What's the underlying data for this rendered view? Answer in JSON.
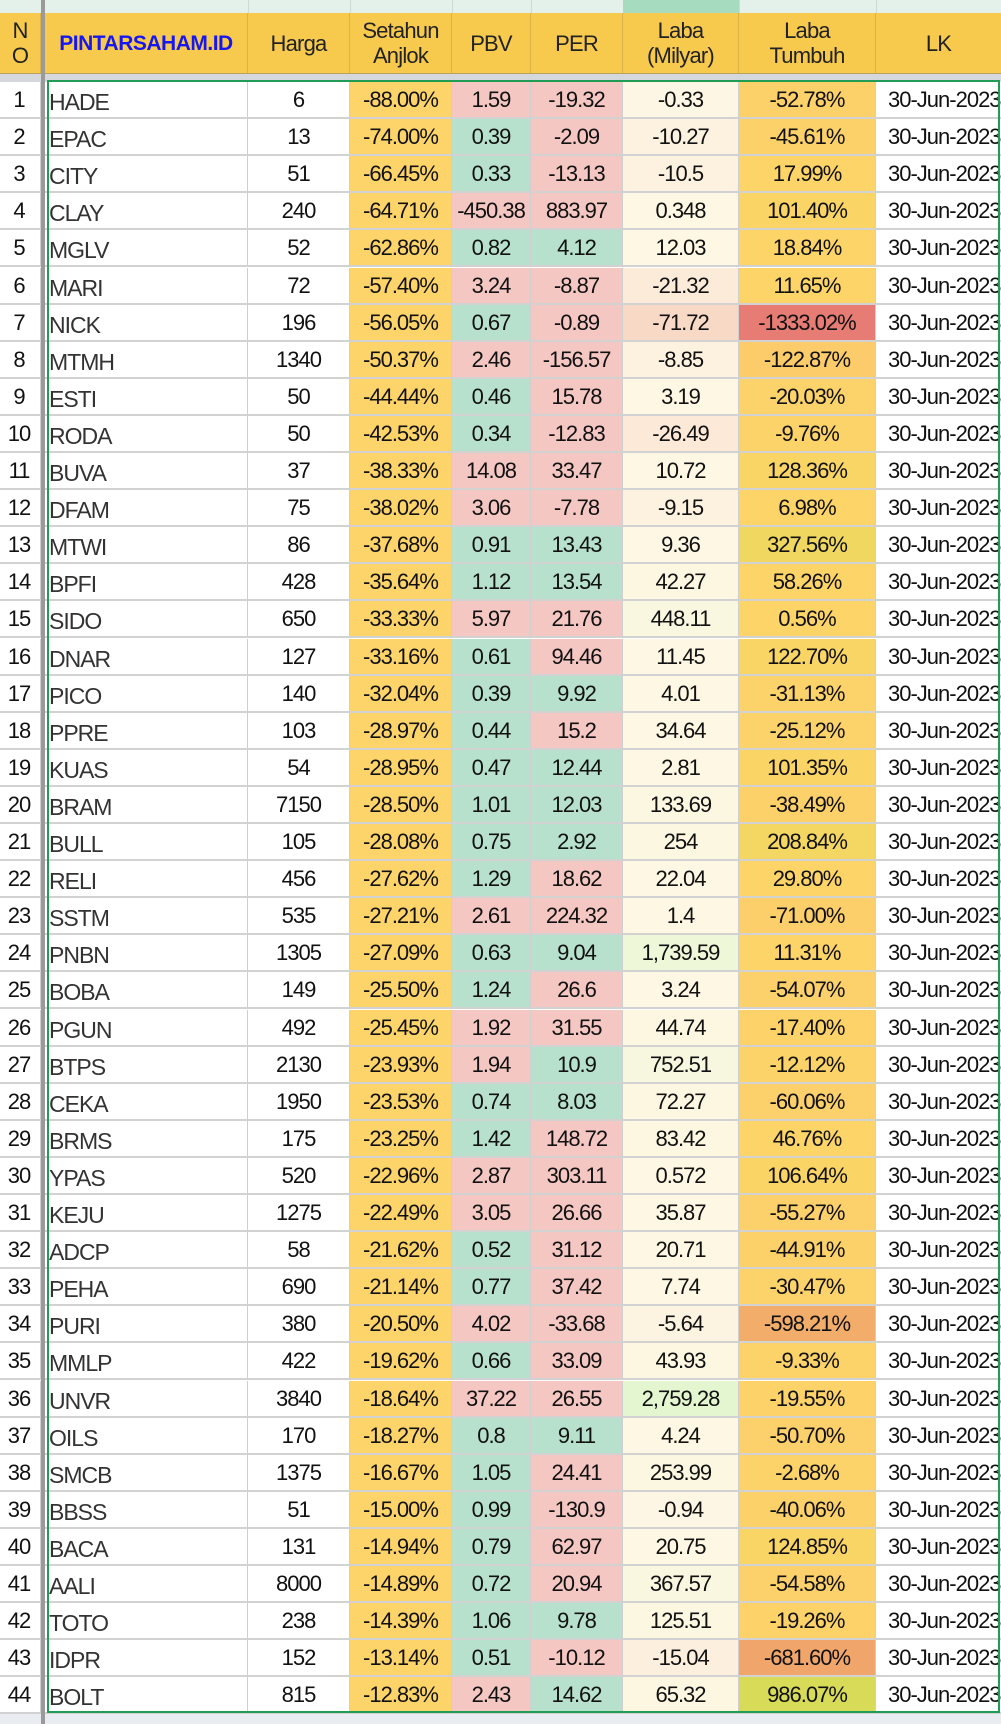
{
  "header": {
    "no": "N\nO",
    "brand": "PINTARSAHAM.ID",
    "harga": "Harga",
    "setahun": "Setahun\nAnjlok",
    "pbv": "PBV",
    "per": "PER",
    "laba": "Laba\n(Milyar)",
    "tumbuh": "Laba\nTumbuh",
    "lk": "LK"
  },
  "colors": {
    "header": "#f7ca4d",
    "brand": "#1717f0",
    "setahun": "#fdd46a",
    "red": "#f4c7c3",
    "green": "#b7e1cd",
    "selection": "#1f9d55"
  },
  "rows": [
    {
      "no": "1",
      "code": "HADE",
      "harga": "6",
      "setahun": "-88.00%",
      "pbv": "1.59",
      "pbv_c": "r",
      "per": "-19.32",
      "per_c": "r",
      "laba": "-0.33",
      "laba_bg": "#fef6e4",
      "tumbuh": "-52.78%",
      "tumbuh_bg": "#fcd16a",
      "lk": "30-Jun-2023"
    },
    {
      "no": "2",
      "code": "EPAC",
      "harga": "13",
      "setahun": "-74.00%",
      "pbv": "0.39",
      "pbv_c": "g",
      "per": "-2.09",
      "per_c": "r",
      "laba": "-10.27",
      "laba_bg": "#fdf1df",
      "tumbuh": "-45.61%",
      "tumbuh_bg": "#fcd16a",
      "lk": "30-Jun-2023"
    },
    {
      "no": "3",
      "code": "CITY",
      "harga": "51",
      "setahun": "-66.45%",
      "pbv": "0.33",
      "pbv_c": "g",
      "per": "-13.13",
      "per_c": "r",
      "laba": "-10.5",
      "laba_bg": "#fdf1df",
      "tumbuh": "17.99%",
      "tumbuh_bg": "#fdd468",
      "lk": "30-Jun-2023"
    },
    {
      "no": "4",
      "code": "CLAY",
      "harga": "240",
      "setahun": "-64.71%",
      "pbv": "-450.38",
      "pbv_c": "r",
      "per": "883.97",
      "per_c": "r",
      "laba": "0.348",
      "laba_bg": "#fef7e3",
      "tumbuh": "101.40%",
      "tumbuh_bg": "#fad566",
      "lk": "30-Jun-2023"
    },
    {
      "no": "5",
      "code": "MGLV",
      "harga": "52",
      "setahun": "-62.86%",
      "pbv": "0.82",
      "pbv_c": "g",
      "per": "4.12",
      "per_c": "g",
      "laba": "12.03",
      "laba_bg": "#fef7e3",
      "tumbuh": "18.84%",
      "tumbuh_bg": "#fdd468",
      "lk": "30-Jun-2023"
    },
    {
      "no": "6",
      "code": "MARI",
      "harga": "72",
      "setahun": "-57.40%",
      "pbv": "3.24",
      "pbv_c": "r",
      "per": "-8.87",
      "per_c": "r",
      "laba": "-21.32",
      "laba_bg": "#fcebd9",
      "tumbuh": "11.65%",
      "tumbuh_bg": "#fdd468",
      "lk": "30-Jun-2023"
    },
    {
      "no": "7",
      "code": "NICK",
      "harga": "196",
      "setahun": "-56.05%",
      "pbv": "0.67",
      "pbv_c": "g",
      "per": "-0.89",
      "per_c": "r",
      "laba": "-71.72",
      "laba_bg": "#f8d9c6",
      "tumbuh": "-1333.02%",
      "tumbuh_bg": "#e67c73",
      "lk": "30-Jun-2023"
    },
    {
      "no": "8",
      "code": "MTMH",
      "harga": "1340",
      "setahun": "-50.37%",
      "pbv": "2.46",
      "pbv_c": "r",
      "per": "-156.57",
      "per_c": "r",
      "laba": "-8.85",
      "laba_bg": "#fdf2e0",
      "tumbuh": "-122.87%",
      "tumbuh_bg": "#fccb6a",
      "lk": "30-Jun-2023"
    },
    {
      "no": "9",
      "code": "ESTI",
      "harga": "50",
      "setahun": "-44.44%",
      "pbv": "0.46",
      "pbv_c": "g",
      "per": "15.78",
      "per_c": "r",
      "laba": "3.19",
      "laba_bg": "#fef7e3",
      "tumbuh": "-20.03%",
      "tumbuh_bg": "#fcd26a",
      "lk": "30-Jun-2023"
    },
    {
      "no": "10",
      "code": "RODA",
      "harga": "50",
      "setahun": "-42.53%",
      "pbv": "0.34",
      "pbv_c": "g",
      "per": "-12.83",
      "per_c": "r",
      "laba": "-26.49",
      "laba_bg": "#fce9d8",
      "tumbuh": "-9.76%",
      "tumbuh_bg": "#fcd369",
      "lk": "30-Jun-2023"
    },
    {
      "no": "11",
      "code": "BUVA",
      "harga": "37",
      "setahun": "-38.33%",
      "pbv": "14.08",
      "pbv_c": "r",
      "per": "33.47",
      "per_c": "r",
      "laba": "10.72",
      "laba_bg": "#fef7e3",
      "tumbuh": "128.36%",
      "tumbuh_bg": "#f9d566",
      "lk": "30-Jun-2023"
    },
    {
      "no": "12",
      "code": "DFAM",
      "harga": "75",
      "setahun": "-38.02%",
      "pbv": "3.06",
      "pbv_c": "r",
      "per": "-7.78",
      "per_c": "r",
      "laba": "-9.15",
      "laba_bg": "#fdf2e0",
      "tumbuh": "6.98%",
      "tumbuh_bg": "#fdd468",
      "lk": "30-Jun-2023"
    },
    {
      "no": "13",
      "code": "MTWI",
      "harga": "86",
      "setahun": "-37.68%",
      "pbv": "0.91",
      "pbv_c": "g",
      "per": "13.43",
      "per_c": "g",
      "laba": "9.36",
      "laba_bg": "#fef7e3",
      "tumbuh": "327.56%",
      "tumbuh_bg": "#efd760",
      "lk": "30-Jun-2023"
    },
    {
      "no": "14",
      "code": "BPFI",
      "harga": "428",
      "setahun": "-35.64%",
      "pbv": "1.12",
      "pbv_c": "g",
      "per": "13.54",
      "per_c": "g",
      "laba": "42.27",
      "laba_bg": "#fdf7e2",
      "tumbuh": "58.26%",
      "tumbuh_bg": "#fcd467",
      "lk": "30-Jun-2023"
    },
    {
      "no": "15",
      "code": "SIDO",
      "harga": "650",
      "setahun": "-33.33%",
      "pbv": "5.97",
      "pbv_c": "r",
      "per": "21.76",
      "per_c": "r",
      "laba": "448.11",
      "laba_bg": "#faf7e0",
      "tumbuh": "0.56%",
      "tumbuh_bg": "#fdd468",
      "lk": "30-Jun-2023"
    },
    {
      "no": "16",
      "code": "DNAR",
      "harga": "127",
      "setahun": "-33.16%",
      "pbv": "0.61",
      "pbv_c": "g",
      "per": "94.46",
      "per_c": "r",
      "laba": "11.45",
      "laba_bg": "#fef7e3",
      "tumbuh": "122.70%",
      "tumbuh_bg": "#f9d566",
      "lk": "30-Jun-2023"
    },
    {
      "no": "17",
      "code": "PICO",
      "harga": "140",
      "setahun": "-32.04%",
      "pbv": "0.39",
      "pbv_c": "g",
      "per": "9.92",
      "per_c": "g",
      "laba": "4.01",
      "laba_bg": "#fef7e3",
      "tumbuh": "-31.13%",
      "tumbuh_bg": "#fcd26a",
      "lk": "30-Jun-2023"
    },
    {
      "no": "18",
      "code": "PPRE",
      "harga": "103",
      "setahun": "-28.97%",
      "pbv": "0.44",
      "pbv_c": "g",
      "per": "15.2",
      "per_c": "r",
      "laba": "34.64",
      "laba_bg": "#fef7e3",
      "tumbuh": "-25.12%",
      "tumbuh_bg": "#fcd26a",
      "lk": "30-Jun-2023"
    },
    {
      "no": "19",
      "code": "KUAS",
      "harga": "54",
      "setahun": "-28.95%",
      "pbv": "0.47",
      "pbv_c": "g",
      "per": "12.44",
      "per_c": "g",
      "laba": "2.81",
      "laba_bg": "#fef7e3",
      "tumbuh": "101.35%",
      "tumbuh_bg": "#fad566",
      "lk": "30-Jun-2023"
    },
    {
      "no": "20",
      "code": "BRAM",
      "harga": "7150",
      "setahun": "-28.50%",
      "pbv": "1.01",
      "pbv_c": "g",
      "per": "12.03",
      "per_c": "g",
      "laba": "133.69",
      "laba_bg": "#fcf7e1",
      "tumbuh": "-38.49%",
      "tumbuh_bg": "#fcd16a",
      "lk": "30-Jun-2023"
    },
    {
      "no": "21",
      "code": "BULL",
      "harga": "105",
      "setahun": "-28.08%",
      "pbv": "0.75",
      "pbv_c": "g",
      "per": "2.92",
      "per_c": "g",
      "laba": "254",
      "laba_bg": "#fbf7e0",
      "tumbuh": "208.84%",
      "tumbuh_bg": "#f4d663",
      "lk": "30-Jun-2023"
    },
    {
      "no": "22",
      "code": "RELI",
      "harga": "456",
      "setahun": "-27.62%",
      "pbv": "1.29",
      "pbv_c": "g",
      "per": "18.62",
      "per_c": "r",
      "laba": "22.04",
      "laba_bg": "#fef7e3",
      "tumbuh": "29.80%",
      "tumbuh_bg": "#fdd468",
      "lk": "30-Jun-2023"
    },
    {
      "no": "23",
      "code": "SSTM",
      "harga": "535",
      "setahun": "-27.21%",
      "pbv": "2.61",
      "pbv_c": "r",
      "per": "224.32",
      "per_c": "r",
      "laba": "1.4",
      "laba_bg": "#fef7e3",
      "tumbuh": "-71.00%",
      "tumbuh_bg": "#fccf6a",
      "lk": "30-Jun-2023"
    },
    {
      "no": "24",
      "code": "PNBN",
      "harga": "1305",
      "setahun": "-27.09%",
      "pbv": "0.63",
      "pbv_c": "g",
      "per": "9.04",
      "per_c": "g",
      "laba": "1,739.59",
      "laba_bg": "#eef7d8",
      "tumbuh": "11.31%",
      "tumbuh_bg": "#fdd468",
      "lk": "30-Jun-2023"
    },
    {
      "no": "25",
      "code": "BOBA",
      "harga": "149",
      "setahun": "-25.50%",
      "pbv": "1.24",
      "pbv_c": "g",
      "per": "26.6",
      "per_c": "r",
      "laba": "3.24",
      "laba_bg": "#fef7e3",
      "tumbuh": "-54.07%",
      "tumbuh_bg": "#fcd06a",
      "lk": "30-Jun-2023"
    },
    {
      "no": "26",
      "code": "PGUN",
      "harga": "492",
      "setahun": "-25.45%",
      "pbv": "1.92",
      "pbv_c": "r",
      "per": "31.55",
      "per_c": "r",
      "laba": "44.74",
      "laba_bg": "#fdf7e2",
      "tumbuh": "-17.40%",
      "tumbuh_bg": "#fcd269",
      "lk": "30-Jun-2023"
    },
    {
      "no": "27",
      "code": "BTPS",
      "harga": "2130",
      "setahun": "-23.93%",
      "pbv": "1.94",
      "pbv_c": "r",
      "per": "10.9",
      "per_c": "g",
      "laba": "752.51",
      "laba_bg": "#f7f6de",
      "tumbuh": "-12.12%",
      "tumbuh_bg": "#fcd369",
      "lk": "30-Jun-2023"
    },
    {
      "no": "28",
      "code": "CEKA",
      "harga": "1950",
      "setahun": "-23.53%",
      "pbv": "0.74",
      "pbv_c": "g",
      "per": "8.03",
      "per_c": "g",
      "laba": "72.27",
      "laba_bg": "#fdf7e2",
      "tumbuh": "-60.06%",
      "tumbuh_bg": "#fcd06a",
      "lk": "30-Jun-2023"
    },
    {
      "no": "29",
      "code": "BRMS",
      "harga": "175",
      "setahun": "-23.25%",
      "pbv": "1.42",
      "pbv_c": "g",
      "per": "148.72",
      "per_c": "r",
      "laba": "83.42",
      "laba_bg": "#fdf7e2",
      "tumbuh": "46.76%",
      "tumbuh_bg": "#fcd467",
      "lk": "30-Jun-2023"
    },
    {
      "no": "30",
      "code": "YPAS",
      "harga": "520",
      "setahun": "-22.96%",
      "pbv": "2.87",
      "pbv_c": "r",
      "per": "303.11",
      "per_c": "r",
      "laba": "0.572",
      "laba_bg": "#fef7e3",
      "tumbuh": "106.64%",
      "tumbuh_bg": "#fad566",
      "lk": "30-Jun-2023"
    },
    {
      "no": "31",
      "code": "KEJU",
      "harga": "1275",
      "setahun": "-22.49%",
      "pbv": "3.05",
      "pbv_c": "r",
      "per": "26.66",
      "per_c": "r",
      "laba": "35.87",
      "laba_bg": "#fef7e3",
      "tumbuh": "-55.27%",
      "tumbuh_bg": "#fcd06a",
      "lk": "30-Jun-2023"
    },
    {
      "no": "32",
      "code": "ADCP",
      "harga": "58",
      "setahun": "-21.62%",
      "pbv": "0.52",
      "pbv_c": "g",
      "per": "31.12",
      "per_c": "r",
      "laba": "20.71",
      "laba_bg": "#fef7e3",
      "tumbuh": "-44.91%",
      "tumbuh_bg": "#fcd16a",
      "lk": "30-Jun-2023"
    },
    {
      "no": "33",
      "code": "PEHA",
      "harga": "690",
      "setahun": "-21.14%",
      "pbv": "0.77",
      "pbv_c": "g",
      "per": "37.42",
      "per_c": "r",
      "laba": "7.74",
      "laba_bg": "#fef7e3",
      "tumbuh": "-30.47%",
      "tumbuh_bg": "#fcd26a",
      "lk": "30-Jun-2023"
    },
    {
      "no": "34",
      "code": "PURI",
      "harga": "380",
      "setahun": "-20.50%",
      "pbv": "4.02",
      "pbv_c": "r",
      "per": "-33.68",
      "per_c": "r",
      "laba": "-5.64",
      "laba_bg": "#fdf3e1",
      "tumbuh": "-598.21%",
      "tumbuh_bg": "#f2ad6b",
      "lk": "30-Jun-2023"
    },
    {
      "no": "35",
      "code": "MMLP",
      "harga": "422",
      "setahun": "-19.62%",
      "pbv": "0.66",
      "pbv_c": "g",
      "per": "33.09",
      "per_c": "r",
      "laba": "43.93",
      "laba_bg": "#fdf7e2",
      "tumbuh": "-9.33%",
      "tumbuh_bg": "#fcd369",
      "lk": "30-Jun-2023"
    },
    {
      "no": "36",
      "code": "UNVR",
      "harga": "3840",
      "setahun": "-18.64%",
      "pbv": "37.22",
      "pbv_c": "r",
      "per": "26.55",
      "per_c": "r",
      "laba": "2,759.28",
      "laba_bg": "#e3f6cf",
      "tumbuh": "-19.55%",
      "tumbuh_bg": "#fcd269",
      "lk": "30-Jun-2023"
    },
    {
      "no": "37",
      "code": "OILS",
      "harga": "170",
      "setahun": "-18.27%",
      "pbv": "0.8",
      "pbv_c": "g",
      "per": "9.11",
      "per_c": "g",
      "laba": "4.24",
      "laba_bg": "#fef7e3",
      "tumbuh": "-50.70%",
      "tumbuh_bg": "#fcd06a",
      "lk": "30-Jun-2023"
    },
    {
      "no": "38",
      "code": "SMCB",
      "harga": "1375",
      "setahun": "-16.67%",
      "pbv": "1.05",
      "pbv_c": "g",
      "per": "24.41",
      "per_c": "r",
      "laba": "253.99",
      "laba_bg": "#fbf7e0",
      "tumbuh": "-2.68%",
      "tumbuh_bg": "#fcd369",
      "lk": "30-Jun-2023"
    },
    {
      "no": "39",
      "code": "BBSS",
      "harga": "51",
      "setahun": "-15.00%",
      "pbv": "0.99",
      "pbv_c": "g",
      "per": "-130.9",
      "per_c": "r",
      "laba": "-0.94",
      "laba_bg": "#fef6e4",
      "tumbuh": "-40.06%",
      "tumbuh_bg": "#fcd16a",
      "lk": "30-Jun-2023"
    },
    {
      "no": "40",
      "code": "BACA",
      "harga": "131",
      "setahun": "-14.94%",
      "pbv": "0.79",
      "pbv_c": "g",
      "per": "62.97",
      "per_c": "r",
      "laba": "20.75",
      "laba_bg": "#fef7e3",
      "tumbuh": "124.85%",
      "tumbuh_bg": "#f9d566",
      "lk": "30-Jun-2023"
    },
    {
      "no": "41",
      "code": "AALI",
      "harga": "8000",
      "setahun": "-14.89%",
      "pbv": "0.72",
      "pbv_c": "g",
      "per": "20.94",
      "per_c": "r",
      "laba": "367.57",
      "laba_bg": "#faf7e0",
      "tumbuh": "-54.58%",
      "tumbuh_bg": "#fcd06a",
      "lk": "30-Jun-2023"
    },
    {
      "no": "42",
      "code": "TOTO",
      "harga": "238",
      "setahun": "-14.39%",
      "pbv": "1.06",
      "pbv_c": "g",
      "per": "9.78",
      "per_c": "g",
      "laba": "125.51",
      "laba_bg": "#fcf7e1",
      "tumbuh": "-19.26%",
      "tumbuh_bg": "#fcd269",
      "lk": "30-Jun-2023"
    },
    {
      "no": "43",
      "code": "IDPR",
      "harga": "152",
      "setahun": "-13.14%",
      "pbv": "0.51",
      "pbv_c": "g",
      "per": "-10.12",
      "per_c": "r",
      "laba": "-15.04",
      "laba_bg": "#fdefde",
      "tumbuh": "-681.60%",
      "tumbuh_bg": "#f0a66b",
      "lk": "30-Jun-2023"
    },
    {
      "no": "44",
      "code": "BOLT",
      "harga": "815",
      "setahun": "-12.83%",
      "pbv": "2.43",
      "pbv_c": "r",
      "per": "14.62",
      "per_c": "g",
      "laba": "65.32",
      "laba_bg": "#fdf7e2",
      "tumbuh": "986.07%",
      "tumbuh_bg": "#d7db57",
      "lk": "30-Jun-2023"
    }
  ]
}
